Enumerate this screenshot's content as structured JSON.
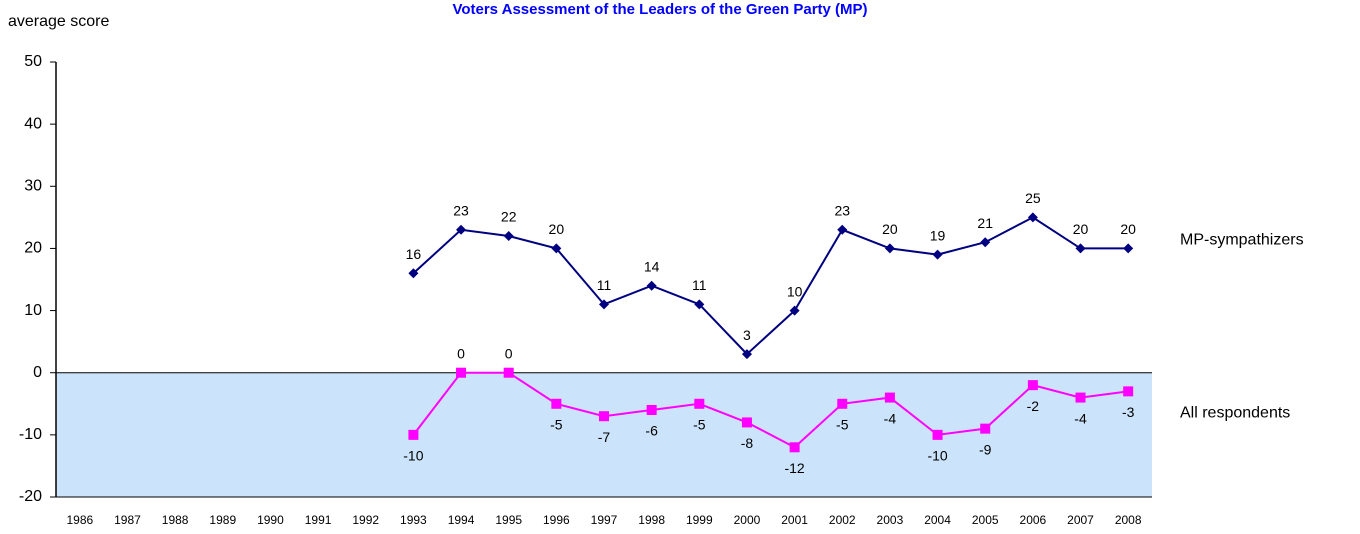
{
  "chart_data": {
    "type": "line",
    "title": "Voters Assessment of the Leaders of the Green Party (MP)",
    "ylabel": "average score",
    "categories": [
      "1986",
      "1987",
      "1988",
      "1989",
      "1990",
      "1991",
      "1992",
      "1993",
      "1994",
      "1995",
      "1996",
      "1997",
      "1998",
      "1999",
      "2000",
      "2001",
      "2002",
      "2003",
      "2004",
      "2005",
      "2006",
      "2007",
      "2008"
    ],
    "series": [
      {
        "name": "MP-sympathizers",
        "color": "#000080",
        "marker": "diamond",
        "values": [
          null,
          null,
          null,
          null,
          null,
          null,
          null,
          16,
          23,
          22,
          20,
          11,
          14,
          11,
          3,
          10,
          23,
          20,
          19,
          21,
          25,
          20,
          20
        ]
      },
      {
        "name": "All respondents",
        "color": "#ff00ff",
        "marker": "square",
        "values": [
          null,
          null,
          null,
          null,
          null,
          null,
          null,
          -10,
          0,
          0,
          -5,
          -7,
          -6,
          -5,
          -8,
          -12,
          -5,
          -4,
          -10,
          -9,
          -2,
          -4,
          -3
        ]
      }
    ],
    "ylim": [
      -20,
      50
    ],
    "yticks": [
      -20,
      -10,
      0,
      10,
      20,
      30,
      40,
      50
    ],
    "grid": false
  }
}
